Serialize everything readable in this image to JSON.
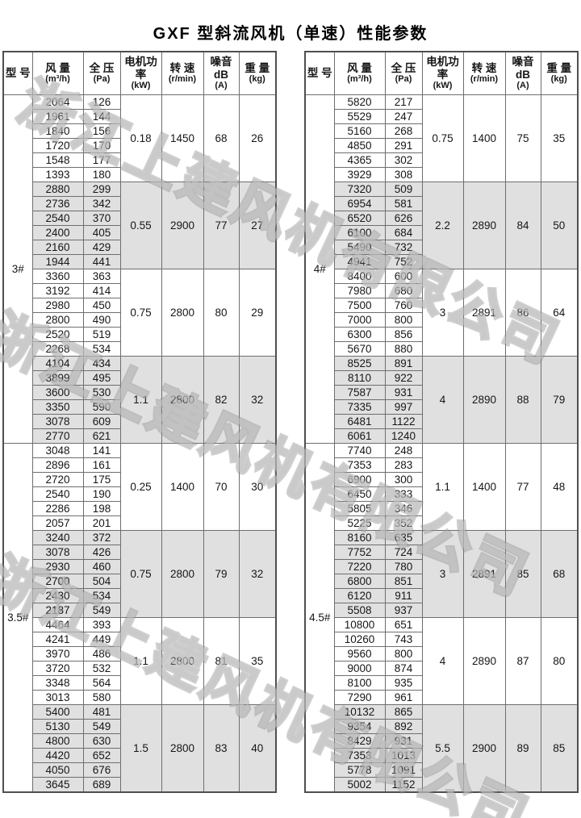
{
  "title": "GXF 型斜流风机（单速）性能参数",
  "watermark": {
    "text": "浙江上建风机有限公司",
    "color": "#8c8c8c"
  },
  "colors": {
    "row_shade": "#e0e0e0",
    "border": "#6e6e6e",
    "text": "#161616"
  },
  "columns": [
    {
      "id": "model",
      "label": "型 号",
      "unit": ""
    },
    {
      "id": "airflow",
      "label": "风 量",
      "unit": "(m³/h)"
    },
    {
      "id": "pressure",
      "label": "全 压",
      "unit": "(Pa)"
    },
    {
      "id": "power",
      "label": "电机功率",
      "unit": "(kW)"
    },
    {
      "id": "speed",
      "label": "转 速",
      "unit": "(r/min)"
    },
    {
      "id": "noise",
      "label": "噪音dB",
      "unit": "(A)"
    },
    {
      "id": "weight",
      "label": "重 量",
      "unit": "(kg)"
    }
  ],
  "tables": [
    {
      "sections": [
        {
          "model": "3#",
          "groups": [
            {
              "power": "0.18",
              "speed": "1450",
              "noise": "68",
              "weight": "26",
              "rows": [
                [
                  2064,
                  126
                ],
                [
                  1961,
                  144
                ],
                [
                  1840,
                  156
                ],
                [
                  1720,
                  170
                ],
                [
                  1548,
                  177
                ],
                [
                  1393,
                  180
                ]
              ]
            },
            {
              "power": "0.55",
              "speed": "2900",
              "noise": "77",
              "weight": "27",
              "rows": [
                [
                  2880,
                  299
                ],
                [
                  2736,
                  342
                ],
                [
                  2540,
                  370
                ],
                [
                  2400,
                  405
                ],
                [
                  2160,
                  429
                ],
                [
                  1944,
                  441
                ]
              ]
            },
            {
              "power": "0.75",
              "speed": "2800",
              "noise": "80",
              "weight": "29",
              "rows": [
                [
                  3360,
                  363
                ],
                [
                  3192,
                  414
                ],
                [
                  2980,
                  450
                ],
                [
                  2800,
                  490
                ],
                [
                  2520,
                  519
                ],
                [
                  2268,
                  534
                ]
              ]
            },
            {
              "power": "1.1",
              "speed": "2800",
              "noise": "82",
              "weight": "32",
              "rows": [
                [
                  4104,
                  434
                ],
                [
                  3899,
                  495
                ],
                [
                  3600,
                  530
                ],
                [
                  3350,
                  590
                ],
                [
                  3078,
                  609
                ],
                [
                  2770,
                  621
                ]
              ]
            }
          ]
        },
        {
          "model": "3.5#",
          "groups": [
            {
              "power": "0.25",
              "speed": "1400",
              "noise": "70",
              "weight": "30",
              "rows": [
                [
                  3048,
                  141
                ],
                [
                  2896,
                  161
                ],
                [
                  2720,
                  175
                ],
                [
                  2540,
                  190
                ],
                [
                  2286,
                  198
                ],
                [
                  2057,
                  201
                ]
              ]
            },
            {
              "power": "0.75",
              "speed": "2800",
              "noise": "79",
              "weight": "32",
              "rows": [
                [
                  3240,
                  372
                ],
                [
                  3078,
                  426
                ],
                [
                  2930,
                  460
                ],
                [
                  2700,
                  504
                ],
                [
                  2430,
                  534
                ],
                [
                  2187,
                  549
                ]
              ]
            },
            {
              "power": "1.1",
              "speed": "2800",
              "noise": "81",
              "weight": "35",
              "rows": [
                [
                  4464,
                  393
                ],
                [
                  4241,
                  449
                ],
                [
                  3970,
                  486
                ],
                [
                  3720,
                  532
                ],
                [
                  3348,
                  564
                ],
                [
                  3013,
                  580
                ]
              ]
            },
            {
              "power": "1.5",
              "speed": "2800",
              "noise": "83",
              "weight": "40",
              "rows": [
                [
                  5400,
                  481
                ],
                [
                  5130,
                  549
                ],
                [
                  4800,
                  630
                ],
                [
                  4420,
                  652
                ],
                [
                  4050,
                  676
                ],
                [
                  3645,
                  689
                ]
              ]
            }
          ]
        }
      ]
    },
    {
      "sections": [
        {
          "model": "4#",
          "groups": [
            {
              "power": "0.75",
              "speed": "1400",
              "noise": "75",
              "weight": "35",
              "rows": [
                [
                  5820,
                  217
                ],
                [
                  5529,
                  247
                ],
                [
                  5160,
                  268
                ],
                [
                  4850,
                  291
                ],
                [
                  4365,
                  302
                ],
                [
                  3929,
                  308
                ]
              ]
            },
            {
              "power": "2.2",
              "speed": "2890",
              "noise": "84",
              "weight": "50",
              "rows": [
                [
                  7320,
                  509
                ],
                [
                  6954,
                  581
                ],
                [
                  6520,
                  626
                ],
                [
                  6100,
                  684
                ],
                [
                  5490,
                  732
                ],
                [
                  4941,
                  752
                ]
              ]
            },
            {
              "power": "3",
              "speed": "2891",
              "noise": "86",
              "weight": "64",
              "rows": [
                [
                  8400,
                  600
                ],
                [
                  7980,
                  680
                ],
                [
                  7500,
                  760
                ],
                [
                  7000,
                  800
                ],
                [
                  6300,
                  856
                ],
                [
                  5670,
                  880
                ]
              ]
            },
            {
              "power": "4",
              "speed": "2890",
              "noise": "88",
              "weight": "79",
              "rows": [
                [
                  8525,
                  891
                ],
                [
                  8110,
                  922
                ],
                [
                  7587,
                  931
                ],
                [
                  7335,
                  997
                ],
                [
                  6481,
                  1122
                ],
                [
                  6061,
                  1240
                ]
              ]
            }
          ]
        },
        {
          "model": "4.5#",
          "groups": [
            {
              "power": "1.1",
              "speed": "1400",
              "noise": "77",
              "weight": "48",
              "rows": [
                [
                  7740,
                  248
                ],
                [
                  7353,
                  283
                ],
                [
                  6900,
                  300
                ],
                [
                  6450,
                  333
                ],
                [
                  5805,
                  346
                ],
                [
                  5225,
                  352
                ]
              ]
            },
            {
              "power": "3",
              "speed": "2891",
              "noise": "85",
              "weight": "68",
              "rows": [
                [
                  8160,
                  635
                ],
                [
                  7752,
                  724
                ],
                [
                  7220,
                  780
                ],
                [
                  6800,
                  851
                ],
                [
                  6120,
                  911
                ],
                [
                  5508,
                  937
                ]
              ]
            },
            {
              "power": "4",
              "speed": "2890",
              "noise": "87",
              "weight": "80",
              "rows": [
                [
                  10800,
                  651
                ],
                [
                  10260,
                  743
                ],
                [
                  9560,
                  800
                ],
                [
                  9000,
                  874
                ],
                [
                  8100,
                  935
                ],
                [
                  7290,
                  961
                ]
              ]
            },
            {
              "power": "5.5",
              "speed": "2900",
              "noise": "89",
              "weight": "85",
              "rows": [
                [
                  10132,
                  865
                ],
                [
                  9354,
                  892
                ],
                [
                  8429,
                  931
                ],
                [
                  7353,
                  1013
                ],
                [
                  5778,
                  1091
                ],
                [
                  5002,
                  1152
                ]
              ]
            }
          ]
        }
      ]
    }
  ]
}
